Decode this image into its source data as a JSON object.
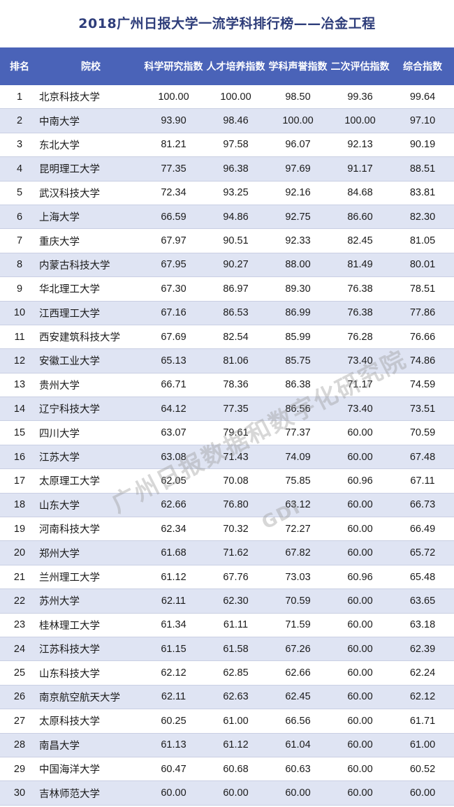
{
  "title": "2018广州日报大学一流学科排行榜——冶金工程",
  "headers": [
    "排名",
    "院校",
    "科学研究指数",
    "人才培养指数",
    "学科声誉指数",
    "二次评估指数",
    "综合指数"
  ],
  "rows": [
    [
      "1",
      "北京科技大学",
      "100.00",
      "100.00",
      "98.50",
      "99.36",
      "99.64"
    ],
    [
      "2",
      "中南大学",
      "93.90",
      "98.46",
      "100.00",
      "100.00",
      "97.10"
    ],
    [
      "3",
      "东北大学",
      "81.21",
      "97.58",
      "96.07",
      "92.13",
      "90.19"
    ],
    [
      "4",
      "昆明理工大学",
      "77.35",
      "96.38",
      "97.69",
      "91.17",
      "88.51"
    ],
    [
      "5",
      "武汉科技大学",
      "72.34",
      "93.25",
      "92.16",
      "84.68",
      "83.81"
    ],
    [
      "6",
      "上海大学",
      "66.59",
      "94.86",
      "92.75",
      "86.60",
      "82.30"
    ],
    [
      "7",
      "重庆大学",
      "67.97",
      "90.51",
      "92.33",
      "82.45",
      "81.05"
    ],
    [
      "8",
      "内蒙古科技大学",
      "67.95",
      "90.27",
      "88.00",
      "81.49",
      "80.01"
    ],
    [
      "9",
      "华北理工大学",
      "67.30",
      "86.97",
      "89.30",
      "76.38",
      "78.51"
    ],
    [
      "10",
      "江西理工大学",
      "67.16",
      "86.53",
      "86.99",
      "76.38",
      "77.86"
    ],
    [
      "11",
      "西安建筑科技大学",
      "67.69",
      "82.54",
      "85.99",
      "76.28",
      "76.66"
    ],
    [
      "12",
      "安徽工业大学",
      "65.13",
      "81.06",
      "85.75",
      "73.40",
      "74.86"
    ],
    [
      "13",
      "贵州大学",
      "66.71",
      "78.36",
      "86.38",
      "71.17",
      "74.59"
    ],
    [
      "14",
      "辽宁科技大学",
      "64.12",
      "77.35",
      "86.56",
      "73.40",
      "73.51"
    ],
    [
      "15",
      "四川大学",
      "63.07",
      "79.61",
      "77.37",
      "60.00",
      "70.59"
    ],
    [
      "16",
      "江苏大学",
      "63.08",
      "71.43",
      "74.09",
      "60.00",
      "67.48"
    ],
    [
      "17",
      "太原理工大学",
      "62.05",
      "70.08",
      "75.85",
      "60.96",
      "67.11"
    ],
    [
      "18",
      "山东大学",
      "62.66",
      "76.80",
      "63.12",
      "60.00",
      "66.73"
    ],
    [
      "19",
      "河南科技大学",
      "62.34",
      "70.32",
      "72.27",
      "60.00",
      "66.49"
    ],
    [
      "20",
      "郑州大学",
      "61.68",
      "71.62",
      "67.82",
      "60.00",
      "65.72"
    ],
    [
      "21",
      "兰州理工大学",
      "61.12",
      "67.76",
      "73.03",
      "60.96",
      "65.48"
    ],
    [
      "22",
      "苏州大学",
      "62.11",
      "62.30",
      "70.59",
      "60.00",
      "63.65"
    ],
    [
      "23",
      "桂林理工大学",
      "61.34",
      "61.11",
      "71.59",
      "60.00",
      "63.18"
    ],
    [
      "24",
      "江苏科技大学",
      "61.15",
      "61.58",
      "67.26",
      "60.00",
      "62.39"
    ],
    [
      "25",
      "山东科技大学",
      "62.12",
      "62.85",
      "62.66",
      "60.00",
      "62.24"
    ],
    [
      "26",
      "南京航空航天大学",
      "62.11",
      "62.63",
      "62.45",
      "60.00",
      "62.12"
    ],
    [
      "27",
      "太原科技大学",
      "60.25",
      "61.00",
      "66.56",
      "60.00",
      "61.71"
    ],
    [
      "28",
      "南昌大学",
      "61.13",
      "61.12",
      "61.04",
      "60.00",
      "61.00"
    ],
    [
      "29",
      "中国海洋大学",
      "60.47",
      "60.68",
      "60.63",
      "60.00",
      "60.52"
    ],
    [
      "30",
      "吉林师范大学",
      "60.00",
      "60.00",
      "60.00",
      "60.00",
      "60.00"
    ]
  ],
  "watermark": "广州日报数据和数字化研究院",
  "watermark_sub": "GDI",
  "colors": {
    "header_bg": "#4a63b8",
    "header_text": "#ffffff",
    "title_text": "#2e3d7a",
    "row_alt_bg": "#dfe4f3"
  }
}
